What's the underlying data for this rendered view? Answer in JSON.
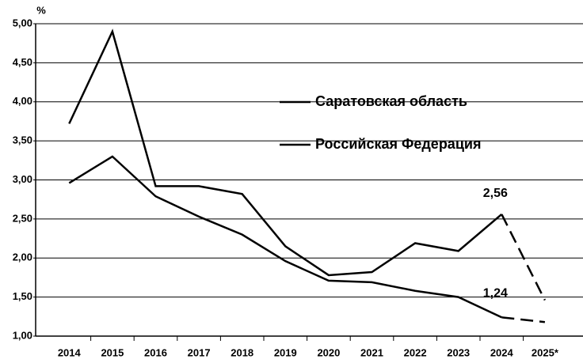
{
  "chart_data": {
    "type": "line",
    "y_label": "%",
    "categories": [
      "2014",
      "2015",
      "2016",
      "2017",
      "2018",
      "2019",
      "2020",
      "2021",
      "2022",
      "2023",
      "2024",
      "2025*"
    ],
    "series": [
      {
        "name": "Саратовская область",
        "color": "#000000",
        "values": [
          3.72,
          4.9,
          2.92,
          2.92,
          2.82,
          2.15,
          1.78,
          1.82,
          2.19,
          2.09,
          2.56,
          1.46
        ],
        "value_labels": [
          null,
          null,
          null,
          null,
          null,
          null,
          null,
          null,
          null,
          null,
          "2,56",
          null
        ]
      },
      {
        "name": "Российская  Федерация",
        "color": "#000000",
        "values": [
          2.96,
          3.3,
          2.79,
          2.53,
          2.3,
          1.96,
          1.71,
          1.69,
          1.58,
          1.5,
          1.24,
          1.18
        ],
        "value_labels": [
          null,
          null,
          null,
          null,
          null,
          null,
          null,
          null,
          null,
          null,
          "1,24",
          null
        ]
      }
    ],
    "ylim": [
      1,
      5
    ],
    "yticks": [
      {
        "value": 1,
        "label": "1,00"
      },
      {
        "value": 1.5,
        "label": "1,50"
      },
      {
        "value": 2,
        "label": "2,00"
      },
      {
        "value": 2.5,
        "label": "2,50"
      },
      {
        "value": 3,
        "label": "3,00"
      },
      {
        "value": 3.5,
        "label": "3,50"
      },
      {
        "value": 4,
        "label": "4,00"
      },
      {
        "value": 4.5,
        "label": "4,50"
      },
      {
        "value": 5,
        "label": "5,00"
      }
    ],
    "grid": true
  }
}
